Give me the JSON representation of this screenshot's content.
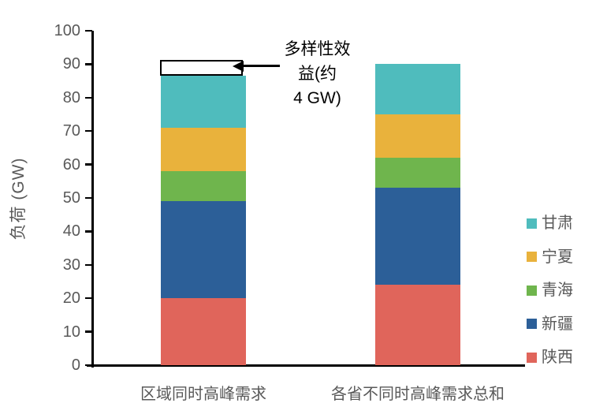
{
  "chart_data": {
    "type": "bar",
    "subtype": "stacked",
    "title": "",
    "xlabel": "",
    "ylabel": "负荷 (GW)",
    "ylim": [
      0,
      100
    ],
    "ytick_step": 10,
    "grid": false,
    "axis_color": "#000000",
    "tick_label_color": "#595959",
    "categories": [
      "区域同时高峰需求",
      "各省不同时高峰需求总和"
    ],
    "series": [
      {
        "name": "陕西",
        "color": "#E0655B",
        "values": [
          20,
          24
        ]
      },
      {
        "name": "新疆",
        "color": "#2C5F98",
        "values": [
          29,
          29
        ]
      },
      {
        "name": "青海",
        "color": "#6FB54D",
        "values": [
          9,
          9
        ]
      },
      {
        "name": "宁夏",
        "color": "#E9B23C",
        "values": [
          13,
          13
        ]
      },
      {
        "name": "甘肃",
        "color": "#4FBCBD",
        "values": [
          15.5,
          15
        ]
      }
    ],
    "totals": [
      86.5,
      90
    ],
    "legend": {
      "position": "right",
      "labels_top_to_bottom": [
        "甘肃",
        "宁夏",
        "青海",
        "新疆",
        "陕西"
      ]
    },
    "annotation": {
      "text": "多样性效益(约 4 GW)",
      "text_lines": [
        "多样性效",
        "益(约",
        "4 GW)"
      ],
      "approx_value_gw": 4,
      "box_from_gw": 86.5,
      "box_to_gw": 91.3,
      "target_category": "区域同时高峰需求"
    }
  }
}
